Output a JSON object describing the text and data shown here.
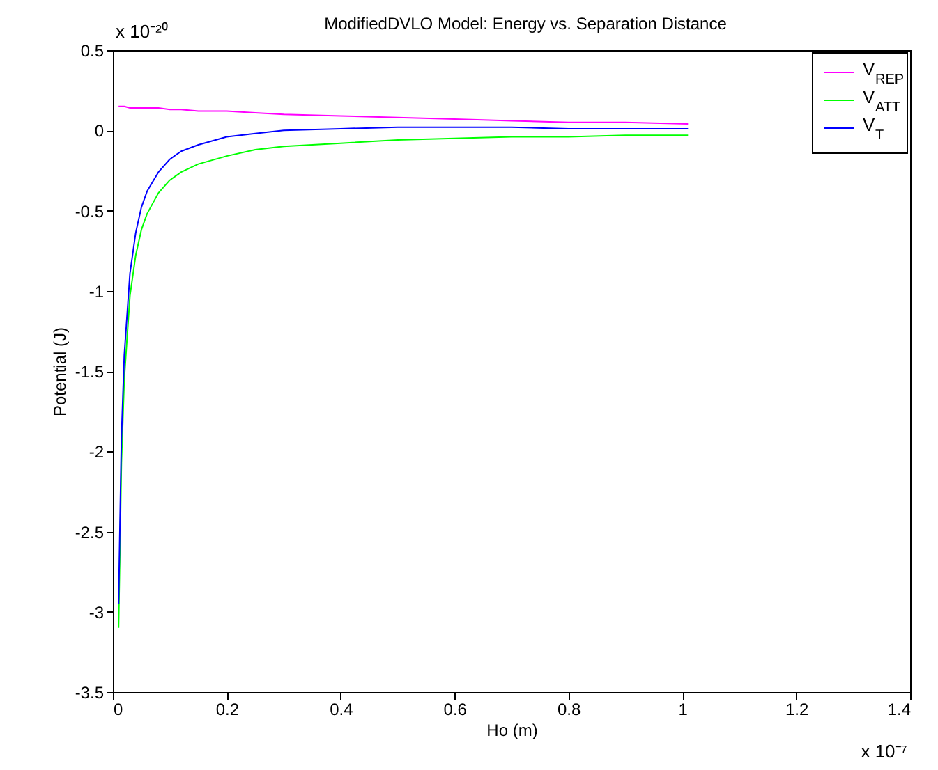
{
  "chart_data": {
    "type": "line",
    "title": "ModifiedDVLO Model: Energy vs. Separation Distance",
    "xlabel": "Ho (m)",
    "ylabel": "Potential (J)",
    "x": [
      0.01,
      0.015,
      0.02,
      0.03,
      0.04,
      0.05,
      0.06,
      0.08,
      0.1,
      0.12,
      0.15,
      0.2,
      0.25,
      0.3,
      0.4,
      0.5,
      0.6,
      0.7,
      0.8,
      0.9,
      1.01
    ],
    "series": [
      {
        "name": "V$_{REP}$",
        "color": "#ff00ff",
        "values": [
          0.15,
          0.15,
          0.15,
          0.14,
          0.14,
          0.14,
          0.14,
          0.14,
          0.13,
          0.13,
          0.12,
          0.12,
          0.11,
          0.1,
          0.09,
          0.08,
          0.07,
          0.06,
          0.05,
          0.05,
          0.04
        ]
      },
      {
        "name": "V$_{ATT}$",
        "color": "#00ff00",
        "values": [
          -3.1,
          -2.07,
          -1.55,
          -1.03,
          -0.78,
          -0.62,
          -0.52,
          -0.39,
          -0.31,
          -0.26,
          -0.21,
          -0.16,
          -0.12,
          -0.1,
          -0.08,
          -0.06,
          -0.05,
          -0.04,
          -0.04,
          -0.03,
          -0.03
        ]
      },
      {
        "name": "V$_{T}$",
        "color": "#0000ff",
        "values": [
          -2.95,
          -1.92,
          -1.4,
          -0.89,
          -0.64,
          -0.48,
          -0.38,
          -0.26,
          -0.18,
          -0.13,
          -0.09,
          -0.04,
          -0.02,
          0,
          0.01,
          0.02,
          0.02,
          0.02,
          0.01,
          0.01,
          0.01
        ]
      }
    ],
    "xlim": [
      0,
      1.4
    ],
    "xticks": [
      0,
      0.2,
      0.4,
      0.6,
      0.8,
      1,
      1.2,
      1.4
    ],
    "ylim": [
      -3.5,
      0.5
    ],
    "yticks": [
      -3.5,
      -3,
      -2.5,
      -2,
      -1.5,
      -1,
      -0.5,
      0,
      0.5
    ],
    "annotations": [
      "x 10⁻²⁰",
      "x 10⁻⁷"
    ],
    "legend": "top right",
    "grid": false,
    "marker": "none",
    "line_style": "solid"
  }
}
